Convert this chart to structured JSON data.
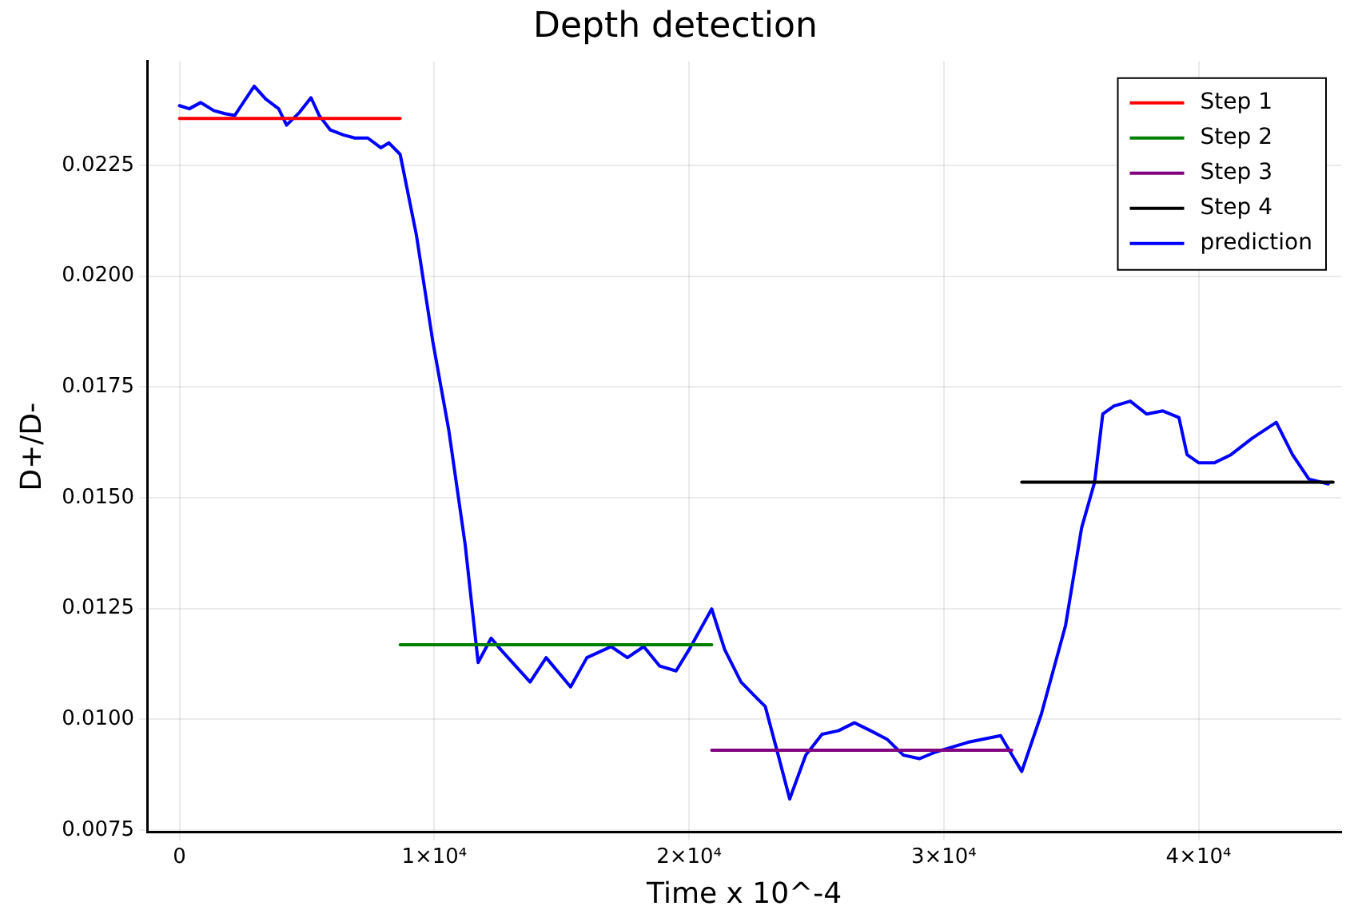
{
  "chart_data": {
    "type": "line",
    "title": "Depth detection",
    "xlabel": "Time x 10^-4",
    "ylabel": "D+/D-",
    "xlim": [
      -1270,
      45600
    ],
    "ylim": [
      0.00745,
      0.02485
    ],
    "xticks": [
      0,
      {
        "value": 10000,
        "label": "1×10⁴"
      },
      {
        "value": 20000,
        "label": "2×10⁴"
      },
      {
        "value": 30000,
        "label": "3×10⁴"
      },
      {
        "value": 40000,
        "label": "4×10⁴"
      }
    ],
    "yticks": [
      0.0075,
      {
        "value": 0.01,
        "label": "0.0100"
      },
      0.0125,
      {
        "value": 0.015,
        "label": "0.0150"
      },
      0.0175,
      {
        "value": 0.02,
        "label": "0.0200"
      },
      0.0225
    ],
    "grid": true,
    "legend": "top right",
    "marker": "none",
    "line_style": "solid",
    "series": [
      {
        "name": "Step 1",
        "color": "#ff0000",
        "x": [
          0,
          8660
        ],
        "values": [
          0.02356,
          0.02356
        ]
      },
      {
        "name": "Step 2",
        "color": "#008000",
        "x": [
          8660,
          20890
        ],
        "values": [
          0.01168,
          0.01168
        ]
      },
      {
        "name": "Step 3",
        "color": "#800080",
        "x": [
          20890,
          32670
        ],
        "values": [
          0.0093,
          0.0093
        ]
      },
      {
        "name": "Step 4",
        "color": "#000000",
        "x": [
          33060,
          45280
        ],
        "values": [
          0.01535,
          0.01535
        ]
      },
      {
        "name": "prediction",
        "color": "#0000ff",
        "x": [
          0,
          380,
          830,
          1340,
          1780,
          2170,
          2420,
          2930,
          3380,
          3890,
          4200,
          4710,
          5160,
          5480,
          5920,
          6430,
          6880,
          7390,
          7900,
          8220,
          8660,
          8790,
          9300,
          9940,
          10570,
          11210,
          11720,
          12230,
          12610,
          13760,
          14390,
          15350,
          15990,
          16940,
          17580,
          18220,
          18850,
          19490,
          20000,
          20890,
          21400,
          22040,
          22670,
          22990,
          23500,
          23950,
          24580,
          25220,
          25860,
          26490,
          27130,
          27770,
          28410,
          29040,
          29680,
          30320,
          30950,
          32230,
          33060,
          33820,
          34780,
          35410,
          35920,
          36240,
          36680,
          37320,
          37960,
          38600,
          39230,
          39550,
          40000,
          40630,
          41270,
          42100,
          43050,
          43690,
          44330,
          45090
        ],
        "values": [
          0.02385,
          0.02378,
          0.02392,
          0.02374,
          0.02367,
          0.02363,
          0.02385,
          0.02429,
          0.024,
          0.02378,
          0.02341,
          0.0237,
          0.02403,
          0.02363,
          0.0233,
          0.02319,
          0.02312,
          0.02312,
          0.0229,
          0.02301,
          0.02275,
          0.02238,
          0.02092,
          0.01853,
          0.01652,
          0.01395,
          0.01128,
          0.01183,
          0.01157,
          0.01084,
          0.01139,
          0.01073,
          0.01139,
          0.01164,
          0.01139,
          0.01164,
          0.0112,
          0.01109,
          0.01157,
          0.01249,
          0.01157,
          0.01084,
          0.01047,
          0.01029,
          0.00919,
          0.0082,
          0.00919,
          0.00966,
          0.00974,
          0.00992,
          0.00974,
          0.00955,
          0.00919,
          0.00911,
          0.00926,
          0.00937,
          0.00948,
          0.00963,
          0.00882,
          0.0101,
          0.01212,
          0.01432,
          0.01535,
          0.01689,
          0.01707,
          0.01718,
          0.01689,
          0.01696,
          0.01681,
          0.01597,
          0.01579,
          0.01579,
          0.01597,
          0.01634,
          0.0167,
          0.01597,
          0.01542,
          0.01531
        ]
      }
    ]
  }
}
